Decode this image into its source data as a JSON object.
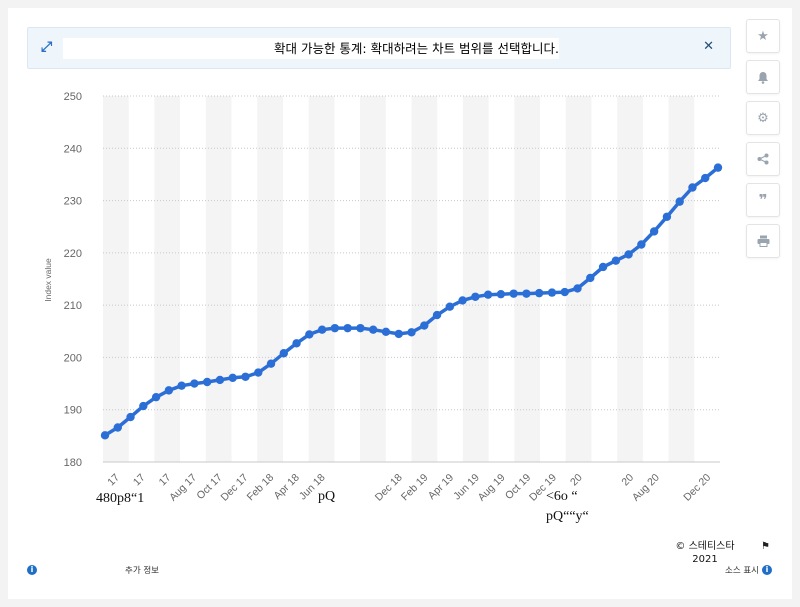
{
  "banner": {
    "text": "확대 가능한 통계: 확대하려는 차트 범위를 선택합니다.",
    "expand_icon": "expand-icon",
    "close_icon": "close-icon"
  },
  "toolbar": {
    "buttons": [
      "star-icon",
      "bell-icon",
      "gear-icon",
      "share-icon",
      "quote-icon",
      "print-icon"
    ]
  },
  "chart_data": {
    "type": "line",
    "title": "",
    "xlabel": "",
    "ylabel": "Index value",
    "ylim": [
      180,
      250
    ],
    "yticks": [
      180,
      190,
      200,
      210,
      220,
      230,
      240,
      250
    ],
    "grid": true,
    "line_color": "#2b6fd6",
    "tick_labels": [
      "17",
      "17",
      "17",
      "Aug 17",
      "Oct 17",
      "Dec 17",
      "Feb 18",
      "Apr 18",
      "Jun 18",
      "",
      "",
      "Dec 18",
      "Feb 19",
      "Apr 19",
      "Jun 19",
      "Aug 19",
      "Oct 19",
      "Dec 19",
      "20",
      "",
      "20",
      "Aug 20",
      "",
      "Dec 20"
    ],
    "series": [
      {
        "values": [
          185.1,
          186.6,
          188.6,
          190.7,
          192.4,
          193.7,
          194.6,
          195.0,
          195.3,
          195.7,
          196.1,
          196.3,
          197.1,
          198.8,
          200.8,
          202.7,
          204.4,
          205.3,
          205.6,
          205.6,
          205.6,
          205.3,
          204.9,
          204.5,
          204.8,
          206.1,
          208.1,
          209.7,
          210.9,
          211.6,
          212.0,
          212.1,
          212.2,
          212.2,
          212.3,
          212.4,
          212.5,
          213.2,
          215.2,
          217.3,
          218.5,
          219.7,
          221.6,
          224.1,
          226.9,
          229.8,
          232.5,
          234.3,
          236.3
        ]
      }
    ]
  },
  "footer": {
    "more_info": "추가 정보",
    "copyright": "© 스테티스타 2021",
    "source": "소스 표시"
  },
  "artifacts": {
    "a1": "480p8“1",
    "a2": "pQ",
    "a3": "<6o  “",
    "a4": "pQ““y“"
  }
}
